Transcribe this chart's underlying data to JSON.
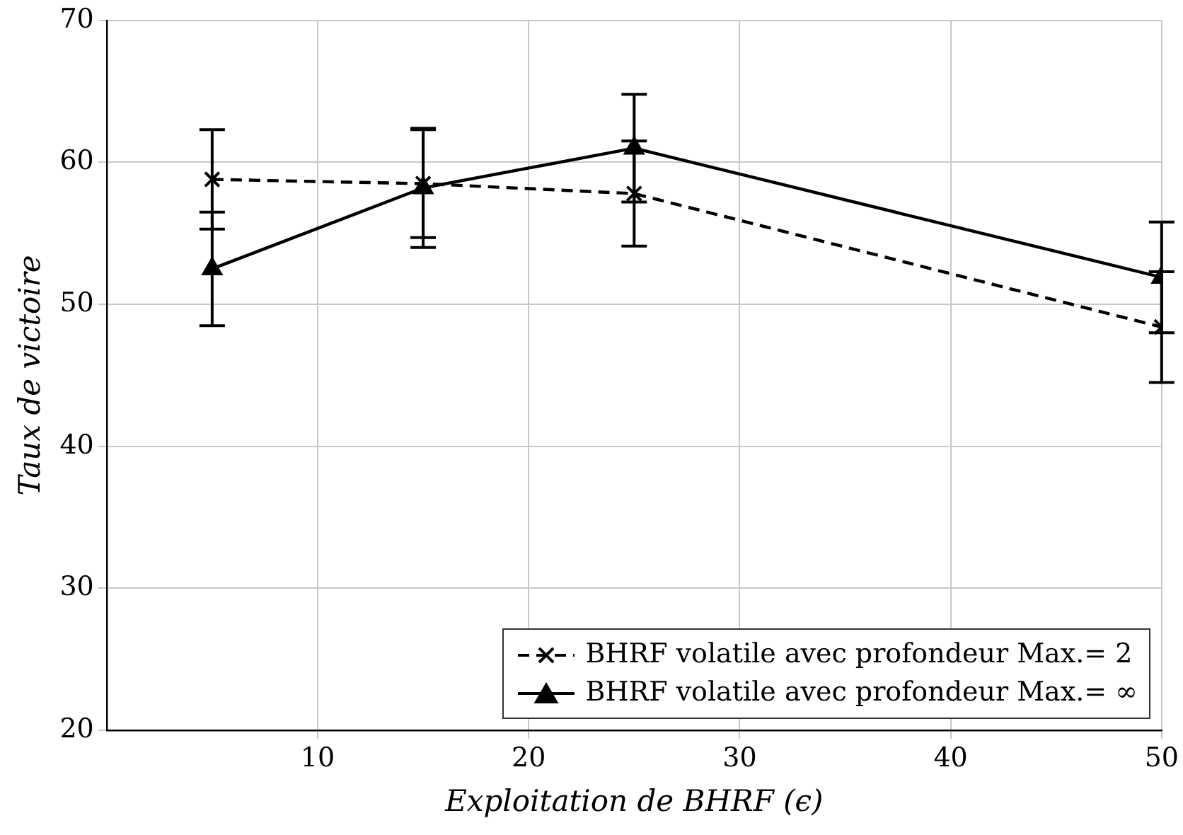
{
  "chart_data": {
    "type": "line",
    "xlabel": "Exploitation de BHRF (ϵ)",
    "ylabel": "Taux de victoire",
    "x": [
      5,
      15,
      25,
      50
    ],
    "xlim": [
      0,
      50
    ],
    "xticks": [
      10,
      20,
      30,
      40,
      50
    ],
    "ylim": [
      20,
      70
    ],
    "yticks": [
      20,
      30,
      40,
      50,
      60,
      70
    ],
    "grid": true,
    "legend": "bottom right",
    "series": [
      {
        "name": "BHRF volatile avec profondeur Max.= 2",
        "color": "#000000",
        "line_style": "dashed",
        "marker": "cross",
        "values": [
          58.8,
          58.5,
          57.8,
          48.4
        ],
        "errors": [
          3.5,
          3.8,
          3.7,
          3.9
        ]
      },
      {
        "name": "BHRF volatile avec profondeur Max.= ∞",
        "color": "#000000",
        "line_style": "solid",
        "marker": "triangle",
        "values": [
          52.5,
          58.2,
          61.0,
          51.9
        ],
        "errors": [
          4,
          4.2,
          3.8,
          3.9
        ]
      }
    ]
  }
}
